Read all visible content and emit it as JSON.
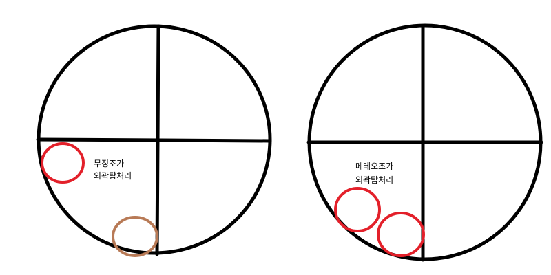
{
  "diagrams": [
    {
      "name": "left",
      "caption_lines": [
        "무징조가",
        "외곽탑처리"
      ],
      "marker_colors": [
        "#e3202a",
        "#b87a56"
      ]
    },
    {
      "name": "right",
      "caption_lines": [
        "메테오조가",
        "외곽탑처리"
      ],
      "marker_colors": [
        "#e3202a",
        "#e3202a"
      ]
    }
  ],
  "colors": {
    "line": "#000000",
    "background": "#ffffff"
  }
}
